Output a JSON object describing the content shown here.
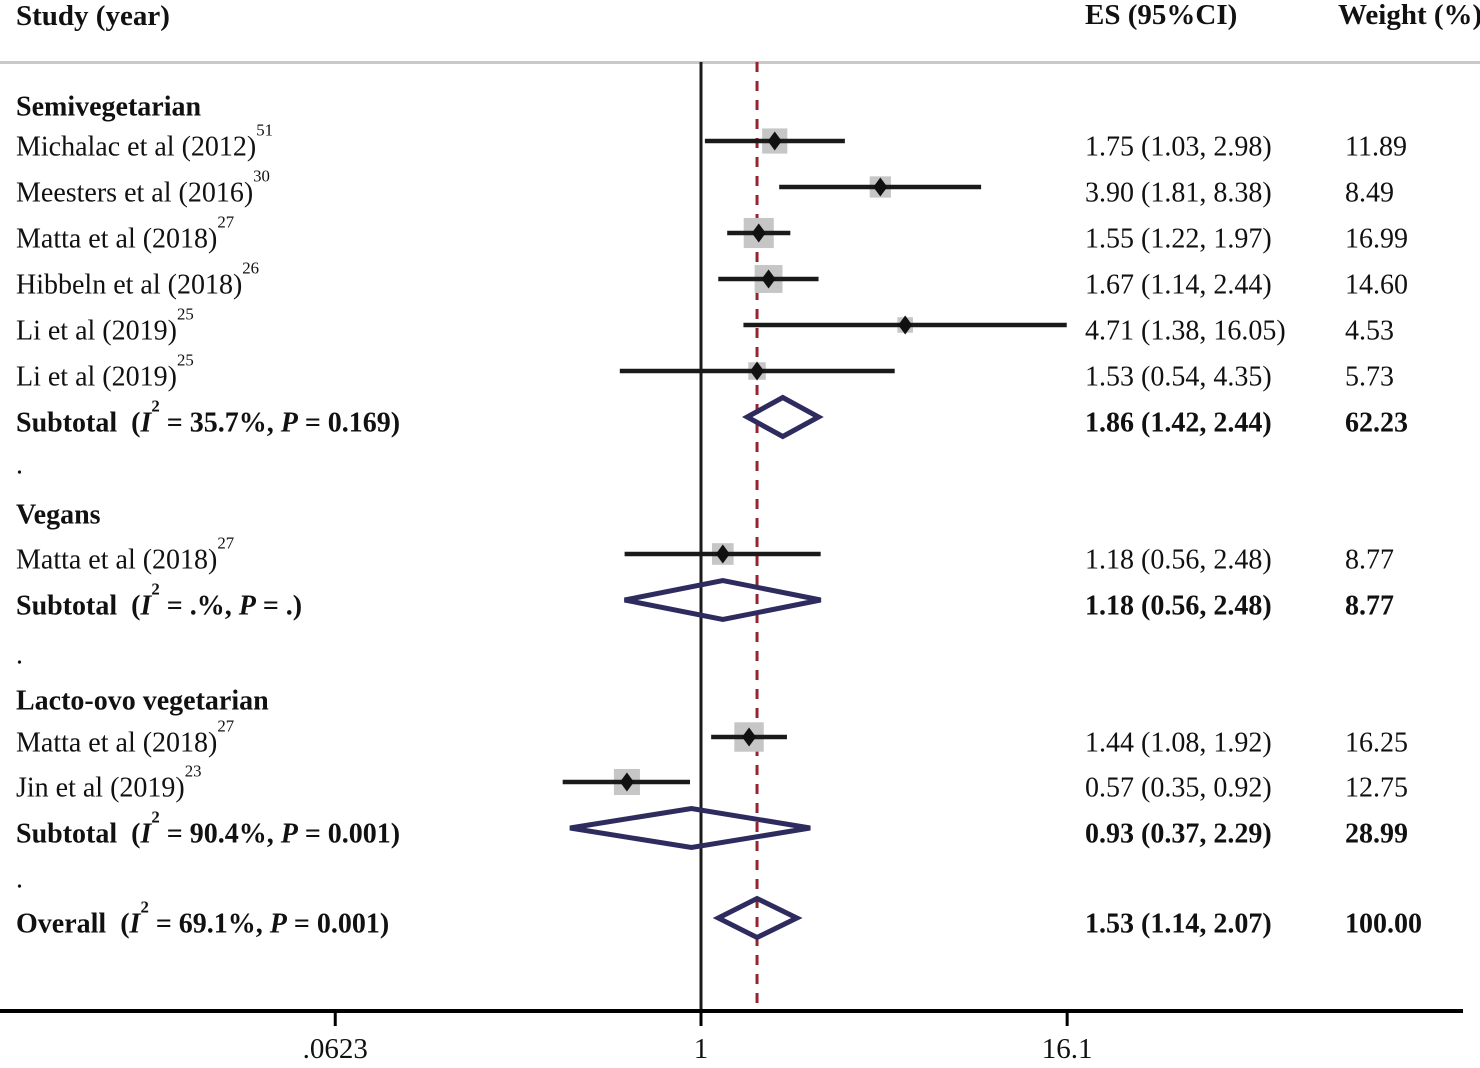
{
  "header": {
    "study": "Study (year)",
    "es": "ES (95%CI)",
    "weight": "Weight (%)"
  },
  "colors": {
    "text": "#111111",
    "ci_line": "#1a1a1a",
    "square": "#c6c6c6",
    "marker": "#111111",
    "diamond": "#2e2c5e",
    "dashed_line": "#96242f",
    "reference_line": "#1a1a1a",
    "axis_line": "#000000",
    "separator": "#c9c9c9"
  },
  "chart_data": {
    "type": "forest",
    "x_scale": "log",
    "reference_value": 1,
    "overall_dashed_value": 1.53,
    "axis": {
      "ticks": [
        {
          "label": ".0623",
          "value": 0.0623
        },
        {
          "label": "1",
          "value": 1
        },
        {
          "label": "16.1",
          "value": 16.1
        }
      ]
    },
    "groups": [
      {
        "name": "Semivegetarian",
        "studies": [
          {
            "label": "Michalac et al (2012)",
            "ref": "51",
            "es": 1.75,
            "lo": 1.03,
            "hi": 2.98,
            "es_text": "1.75 (1.03, 2.98)",
            "weight": 11.89,
            "weight_text": "11.89"
          },
          {
            "label": "Meesters et al (2016)",
            "ref": "30",
            "es": 3.9,
            "lo": 1.81,
            "hi": 8.38,
            "es_text": "3.90 (1.81, 8.38)",
            "weight": 8.49,
            "weight_text": "8.49"
          },
          {
            "label": "Matta et al (2018)",
            "ref": "27",
            "es": 1.55,
            "lo": 1.22,
            "hi": 1.97,
            "es_text": "1.55 (1.22, 1.97)",
            "weight": 16.99,
            "weight_text": "16.99"
          },
          {
            "label": "Hibbeln et al (2018)",
            "ref": "26",
            "es": 1.67,
            "lo": 1.14,
            "hi": 2.44,
            "es_text": "1.67 (1.14, 2.44)",
            "weight": 14.6,
            "weight_text": "14.60"
          },
          {
            "label": "Li et al (2019)",
            "ref": "25",
            "es": 4.71,
            "lo": 1.38,
            "hi": 16.05,
            "es_text": "4.71 (1.38, 16.05)",
            "weight": 4.53,
            "weight_text": "4.53"
          },
          {
            "label": "Li et al (2019)",
            "ref": "25",
            "es": 1.53,
            "lo": 0.54,
            "hi": 4.35,
            "es_text": "1.53 (0.54, 4.35)",
            "weight": 5.73,
            "weight_text": "5.73"
          }
        ],
        "subtotal": {
          "prefix": "Subtotal",
          "i2": "35.7%",
          "p": "0.169",
          "es": 1.86,
          "lo": 1.42,
          "hi": 2.44,
          "es_text": "1.86 (1.42, 2.44)",
          "weight_text": "62.23"
        }
      },
      {
        "name": "Vegans",
        "studies": [
          {
            "label": "Matta et al (2018)",
            "ref": "27",
            "es": 1.18,
            "lo": 0.56,
            "hi": 2.48,
            "es_text": "1.18 (0.56, 2.48)",
            "weight": 8.77,
            "weight_text": "8.77"
          }
        ],
        "subtotal": {
          "prefix": "Subtotal",
          "i2": ".%",
          "p": ".",
          "es": 1.18,
          "lo": 0.56,
          "hi": 2.48,
          "es_text": "1.18 (0.56, 2.48)",
          "weight_text": "8.77"
        }
      },
      {
        "name": "Lacto-ovo vegetarian",
        "studies": [
          {
            "label": "Matta et al (2018)",
            "ref": "27",
            "es": 1.44,
            "lo": 1.08,
            "hi": 1.92,
            "es_text": "1.44 (1.08, 1.92)",
            "weight": 16.25,
            "weight_text": "16.25"
          },
          {
            "label": "Jin et al (2019)",
            "ref": "23",
            "es": 0.57,
            "lo": 0.35,
            "hi": 0.92,
            "es_text": "0.57 (0.35, 0.92)",
            "weight": 12.75,
            "weight_text": "12.75"
          }
        ],
        "subtotal": {
          "prefix": "Subtotal",
          "i2": "90.4%",
          "p": "0.001",
          "es": 0.93,
          "lo": 0.37,
          "hi": 2.29,
          "es_text": "0.93 (0.37, 2.29)",
          "weight_text": "28.99"
        }
      }
    ],
    "overall": {
      "prefix": "Overall",
      "i2": "69.1%",
      "p": "0.001",
      "es": 1.53,
      "lo": 1.14,
      "hi": 2.07,
      "es_text": "1.53 (1.14, 2.07)",
      "weight_text": "100.00"
    },
    "group_divider_char": "."
  }
}
